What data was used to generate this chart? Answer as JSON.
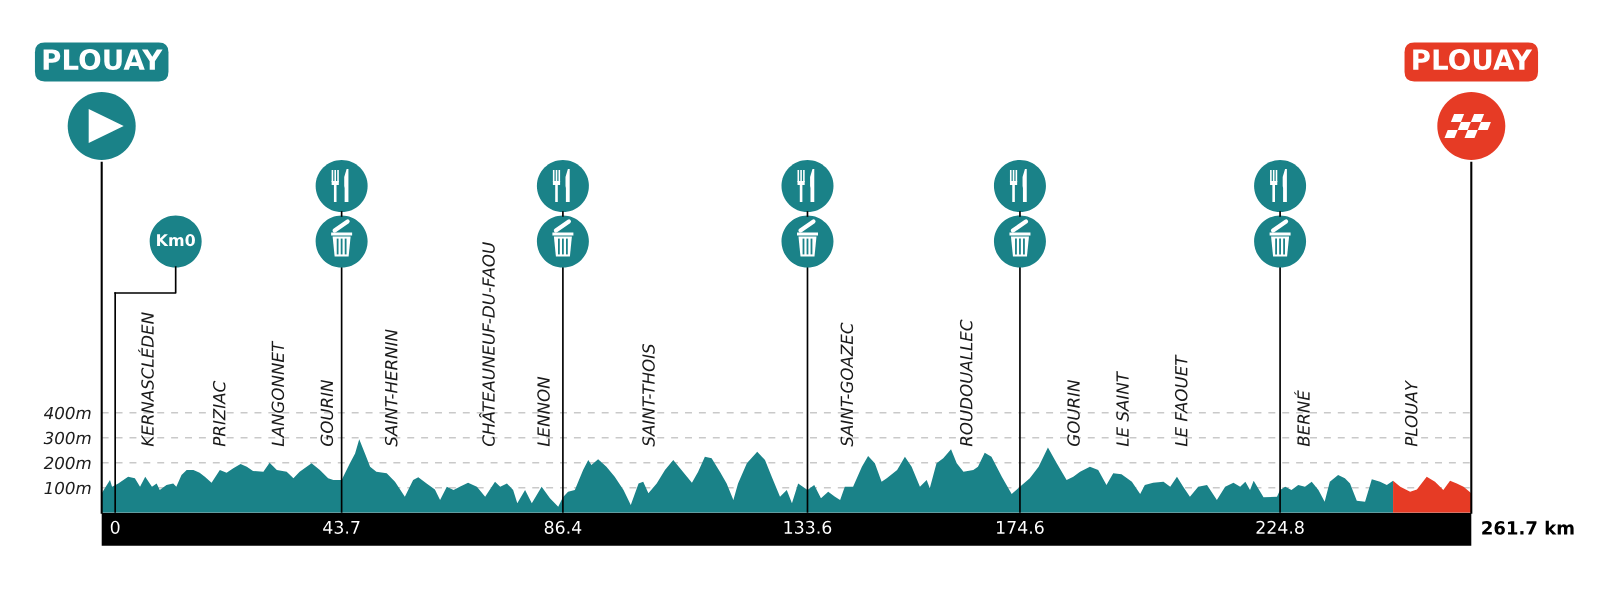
{
  "chart_data": {
    "type": "area",
    "xlabel": "261.7 km",
    "xlim": [
      -2.6,
      261.7
    ],
    "ylim": [
      0,
      1400
    ],
    "xticks": [
      0,
      43.7,
      86.4,
      133.6,
      174.6,
      224.8
    ],
    "yticks": [
      {
        "value": 100,
        "label": "100m"
      },
      {
        "value": 200,
        "label": "200m"
      },
      {
        "value": 300,
        "label": "300m"
      },
      {
        "value": 400,
        "label": "400m"
      }
    ],
    "grid": "y",
    "series": [
      {
        "color": "#1a8288",
        "x": [
          -2.6,
          -1.0,
          -0.6,
          0.6,
          2.5,
          3.8,
          4.8,
          5.8,
          7.1,
          8.0,
          8.6,
          9.9,
          11.2,
          11.8,
          12.8,
          13.8,
          15.1,
          16.3,
          17.3,
          18.6,
          20.2,
          21.5,
          22.8,
          24.2,
          25.4,
          26.6,
          28.6,
          29.8,
          31.2,
          33.1,
          34.4,
          35.6,
          37.9,
          39.5,
          41.1,
          42.1,
          43.7,
          45.3,
          46.3,
          47.1,
          48.2,
          49.2,
          50.4,
          52.4,
          54.0,
          55.9,
          57.5,
          58.5,
          60.1,
          61.7,
          62.7,
          64.0,
          65.3,
          66.5,
          68.1,
          69.8,
          71.4,
          73.3,
          74.3,
          75.6,
          76.8,
          77.6,
          79.1,
          80.4,
          82.3,
          83.9,
          85.5,
          86.4,
          87.4,
          88.7,
          90.3,
          91.3,
          91.9,
          93.2,
          94.8,
          96.4,
          98.1,
          99.5,
          101.0,
          101.9,
          102.9,
          104.5,
          106.1,
          107.7,
          109.0,
          111.3,
          112.5,
          113.8,
          115.1,
          116.7,
          118.0,
          119.3,
          120.2,
          121.9,
          123.9,
          125.4,
          126.7,
          128.3,
          129.6,
          130.6,
          131.8,
          133.6,
          134.9,
          136.2,
          137.6,
          138.9,
          139.9,
          140.8,
          142.4,
          144.1,
          145.3,
          146.6,
          147.9,
          148.9,
          150.9,
          152.4,
          153.7,
          155.3,
          156.6,
          157.2,
          158.5,
          159.8,
          161.3,
          162.4,
          163.7,
          165.6,
          166.5,
          167.8,
          169.1,
          171.1,
          173.0,
          174.6,
          176.5,
          178.2,
          180.0,
          181.7,
          183.6,
          184.9,
          186.2,
          188.1,
          189.7,
          191.3,
          192.6,
          194.2,
          196.2,
          197.8,
          198.7,
          200.3,
          202.3,
          203.6,
          204.9,
          206.1,
          207.4,
          209.0,
          210.7,
          212.6,
          214.2,
          215.8,
          217.1,
          218.1,
          219.0,
          219.7,
          221.6,
          224.2,
          224.8,
          225.8,
          227.0,
          228.3,
          229.6,
          230.9,
          232.2,
          233.4,
          234.4,
          236.0,
          237.3,
          238.3,
          239.6,
          241.2,
          242.5,
          244.1,
          245.4,
          246.6
        ],
        "values": [
          78,
          131,
          104,
          117,
          144,
          138,
          104,
          144,
          104,
          117,
          91,
          111,
          117,
          104,
          151,
          171,
          171,
          160,
          144,
          120,
          171,
          160,
          178,
          195,
          184,
          167,
          164,
          200,
          171,
          164,
          138,
          164,
          198,
          171,
          138,
          131,
          131,
          198,
          237,
          294,
          237,
          184,
          164,
          158,
          124,
          64,
          131,
          142,
          117,
          93,
          51,
          104,
          91,
          104,
          120,
          104,
          64,
          124,
          104,
          117,
          91,
          38,
          91,
          38,
          104,
          58,
          24,
          62,
          84,
          91,
          171,
          211,
          191,
          214,
          184,
          144,
          91,
          31,
          117,
          124,
          78,
          117,
          171,
          211,
          178,
          120,
          164,
          224,
          218,
          164,
          117,
          51,
          117,
          198,
          244,
          211,
          144,
          64,
          91,
          38,
          117,
          91,
          111,
          58,
          84,
          64,
          51,
          104,
          104,
          184,
          227,
          198,
          124,
          138,
          171,
          224,
          184,
          104,
          131,
          98,
          198,
          218,
          254,
          198,
          164,
          171,
          184,
          240,
          224,
          144,
          75,
          104,
          138,
          184,
          261,
          198,
          131,
          144,
          164,
          184,
          171,
          111,
          158,
          154,
          124,
          75,
          111,
          120,
          124,
          104,
          144,
          104,
          64,
          104,
          111,
          51,
          104,
          120,
          104,
          124,
          91,
          128,
          62,
          64,
          91,
          104,
          91,
          111,
          104,
          124,
          91,
          44,
          124,
          151,
          138,
          117,
          48,
          44,
          134,
          124,
          111,
          128
        ]
      },
      {
        "color": "#e63b25",
        "x": [
          246.6,
          248.0,
          249.9,
          251.2,
          253.1,
          254.7,
          256.3,
          257.6,
          258.9,
          260.2,
          261.7
        ],
        "values": [
          128,
          104,
          84,
          93,
          144,
          124,
          91,
          128,
          117,
          104,
          78
        ]
      }
    ],
    "ref_lines": [
      {
        "axis": "x",
        "value": 0
      },
      {
        "axis": "x",
        "value": 43.7
      },
      {
        "axis": "x",
        "value": 86.4
      },
      {
        "axis": "x",
        "value": 133.6
      },
      {
        "axis": "x",
        "value": 174.6
      },
      {
        "axis": "x",
        "value": 224.8
      }
    ],
    "annotations": [
      "PLOUAY",
      "Km0",
      "KERNASCLÉDEN",
      "PRIZIAC",
      "LANGONNET",
      "GOURIN",
      "SAINT-HERNIN",
      "CHÂTEAUNEUF-DU-FAOU",
      "LENNON",
      "SAINT-THOIS",
      "SAINT-GOAZEC",
      "ROUDOUALLEC",
      "GOURIN",
      "LE SAINT",
      "LE FAOUET",
      "BERNÉ",
      "PLOUAY",
      "PLOUAY"
    ]
  }
}
